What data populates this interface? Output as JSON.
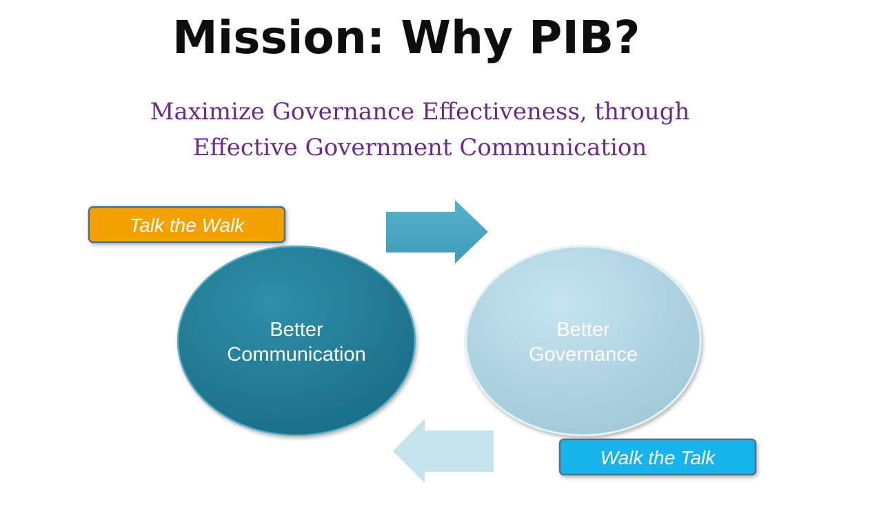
{
  "slide": {
    "title": "Mission: Why PIB?",
    "subtitle_line1": "Maximize Governance Effectiveness, through",
    "subtitle_line2": "Effective Government Communication"
  },
  "diagram": {
    "left_node": {
      "line1": "Better",
      "line2": "Communication"
    },
    "right_node": {
      "line1": "Better",
      "line2": "Governance"
    },
    "top_tag": "Talk the Walk",
    "bottom_tag": "Walk the Talk"
  },
  "colors": {
    "title": "#0d0d0d",
    "subtitle": "#6d2a85",
    "left_node": "#22778f",
    "right_node": "#b7d9e8",
    "top_tag": "#f2a104",
    "bottom_tag": "#15b4ea",
    "arrow_right": "#4aa7c4",
    "arrow_left": "#c6e2ec"
  }
}
